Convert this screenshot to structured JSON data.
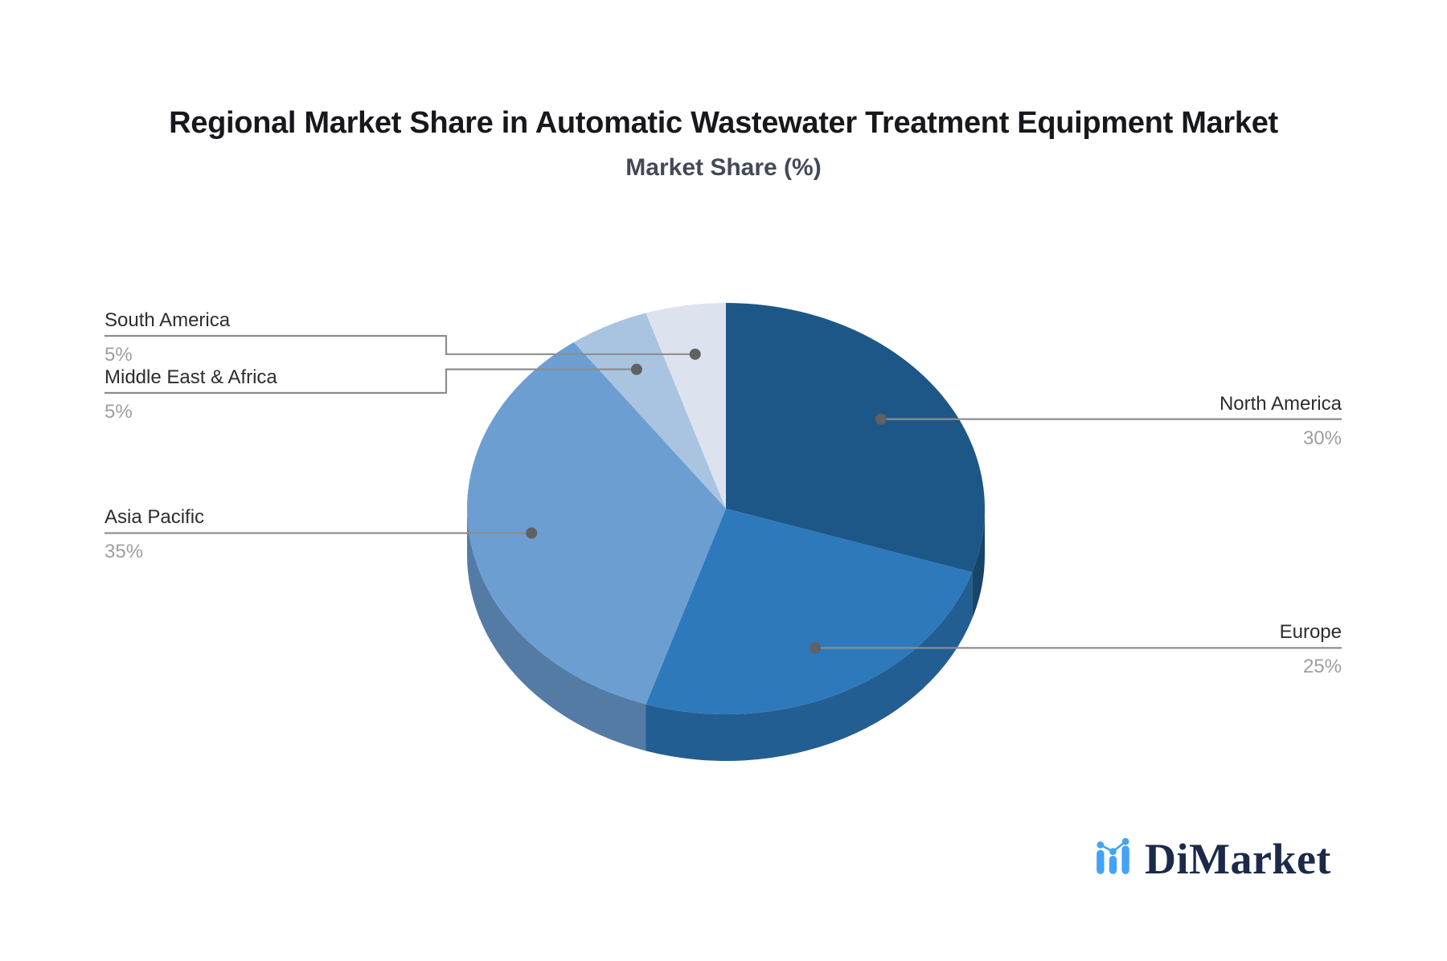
{
  "header": {
    "title": "Regional Market Share in Automatic Wastewater Treatment Equipment Market",
    "subtitle": "Market Share (%)"
  },
  "chart_data": {
    "type": "pie",
    "style": "3d",
    "title": "Regional Market Share in Automatic Wastewater Treatment Equipment Market",
    "subtitle": "Market Share (%)",
    "unit": "%",
    "start_angle_deg": 90,
    "direction": "clockwise",
    "legend": "none",
    "series": [
      {
        "name": "North America",
        "value": 30,
        "display": "30%",
        "color": "#1d5787",
        "label_side": "right"
      },
      {
        "name": "Europe",
        "value": 25,
        "display": "25%",
        "color": "#2d79bc",
        "label_side": "right"
      },
      {
        "name": "Asia Pacific",
        "value": 35,
        "display": "35%",
        "color": "#6c9ed2",
        "label_side": "left"
      },
      {
        "name": "Middle East & Africa",
        "value": 5,
        "display": "5%",
        "color": "#a9c4e0",
        "label_side": "left"
      },
      {
        "name": "South America",
        "value": 5,
        "display": "5%",
        "color": "#dde3ee",
        "label_side": "left"
      }
    ],
    "label_name_color": "#2d2d2d",
    "label_value_color": "#9e9e9e",
    "connector_line_color": "#8d8d8d",
    "connector_dot_color": "#616161"
  },
  "logo": {
    "text": "DiMarket",
    "icon": "mini-bar-line-chart-icon",
    "text_color": "#1b2a4a",
    "icon_color": "#42a4f5"
  }
}
